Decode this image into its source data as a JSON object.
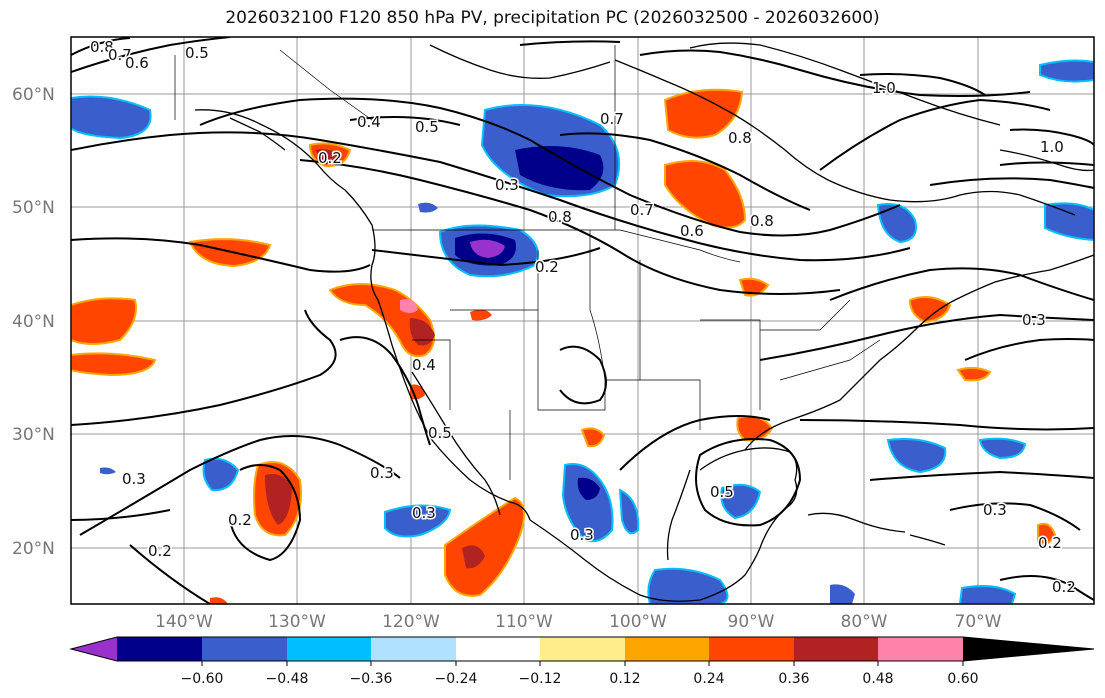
{
  "title": "2026032100 F120 850 hPa PV, precipitation PC (2026032500 - 2026032600)",
  "latitude_labels": [
    "60°N",
    "50°N",
    "40°N",
    "30°N",
    "20°N"
  ],
  "longitude_labels": [
    "140°W",
    "130°W",
    "120°W",
    "110°W",
    "100°W",
    "90°W",
    "80°W",
    "70°W"
  ],
  "colorbar": {
    "tick_labels": [
      "−0.60",
      "−0.48",
      "−0.36",
      "−0.24",
      "−0.12",
      "0.12",
      "0.24",
      "0.36",
      "0.48",
      "0.60"
    ],
    "colors": [
      "#9932CC",
      "#00008B",
      "#3A5FCD",
      "#00BFFF",
      "#B0E2FF",
      "#FFFFFF",
      "#FFEC8B",
      "#FFA500",
      "#FF4500",
      "#B22222",
      "#FF82AB"
    ]
  },
  "contour_labels": [
    "0.8",
    "0.7",
    "0.6",
    "0.5",
    "0.4",
    "0.5",
    "0.2",
    "0.3",
    "0.7",
    "0.8",
    "1.0",
    "0.8",
    "0.7",
    "0.6",
    "0.8",
    "0.2",
    "0.4",
    "0.5",
    "0.3",
    "0.3",
    "0.2",
    "0.2",
    "0.3",
    "0.3",
    "0.5",
    "0.2",
    "0.3",
    "0.3",
    "0.2",
    "1.0"
  ]
}
